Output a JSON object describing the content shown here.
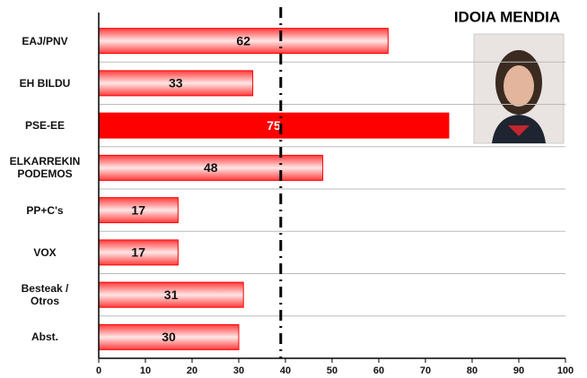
{
  "chart_data": {
    "type": "bar",
    "orientation": "horizontal",
    "title": "IDOIA MENDIA",
    "categories": [
      "EAJ/PNV",
      "EH BILDU",
      "PSE-EE",
      "ELKARREKIN\nPODEMOS",
      "PP+C's",
      "VOX",
      "Besteak /\nOtros",
      "Abst."
    ],
    "values": [
      62,
      33,
      75,
      48,
      17,
      17,
      31,
      30
    ],
    "color": "#ff0000",
    "highlight_index": 2,
    "xlim": [
      0,
      100
    ],
    "xticks": [
      0,
      10,
      20,
      30,
      40,
      50,
      60,
      70,
      80,
      90,
      100
    ],
    "reference_line": 39,
    "grid": true
  }
}
